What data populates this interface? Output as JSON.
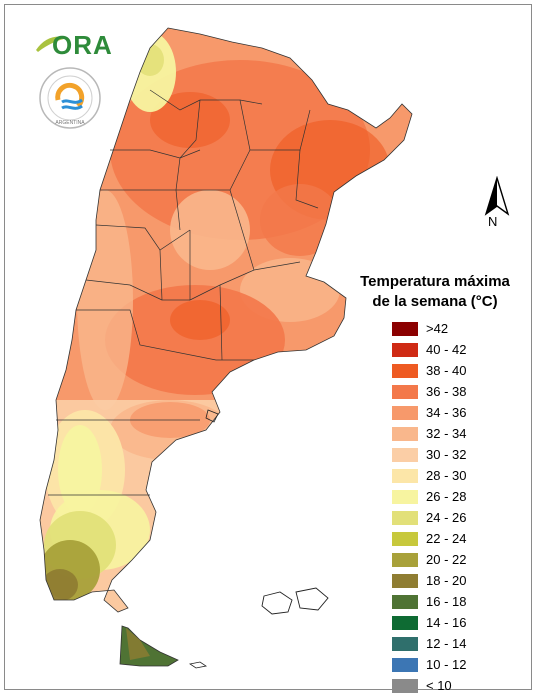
{
  "logo": {
    "ora_text": "ORA",
    "seal_text": "ARGENTINA"
  },
  "north": {
    "letter": "N"
  },
  "legend": {
    "title_line1": "Temperatura máxima",
    "title_line2": "de la semana (°C)",
    "items": [
      {
        "label": ">42",
        "color": "#8b0000"
      },
      {
        "label": "40 - 42",
        "color": "#cf2a14"
      },
      {
        "label": "38 - 40",
        "color": "#ee5a22"
      },
      {
        "label": "36 - 38",
        "color": "#f3784a"
      },
      {
        "label": "34 - 36",
        "color": "#f7996b"
      },
      {
        "label": "32 - 34",
        "color": "#f9b78c"
      },
      {
        "label": "30 - 32",
        "color": "#fbcea6"
      },
      {
        "label": "28 - 30",
        "color": "#fce6a8"
      },
      {
        "label": "26 - 28",
        "color": "#f7f4a0"
      },
      {
        "label": "24 - 26",
        "color": "#e2e079"
      },
      {
        "label": "22 - 24",
        "color": "#c7c83c"
      },
      {
        "label": "20 - 22",
        "color": "#a8a13a"
      },
      {
        "label": "18 - 20",
        "color": "#8f7d32"
      },
      {
        "label": "16 - 18",
        "color": "#4f7334"
      },
      {
        "label": "14 - 16",
        "color": "#0e6b33"
      },
      {
        "label": "12 - 14",
        "color": "#2f6f6c"
      },
      {
        "label": "10 - 12",
        "color": "#3c76b4"
      },
      {
        "label": "< 10",
        "color": "#8a8a8a"
      }
    ]
  }
}
